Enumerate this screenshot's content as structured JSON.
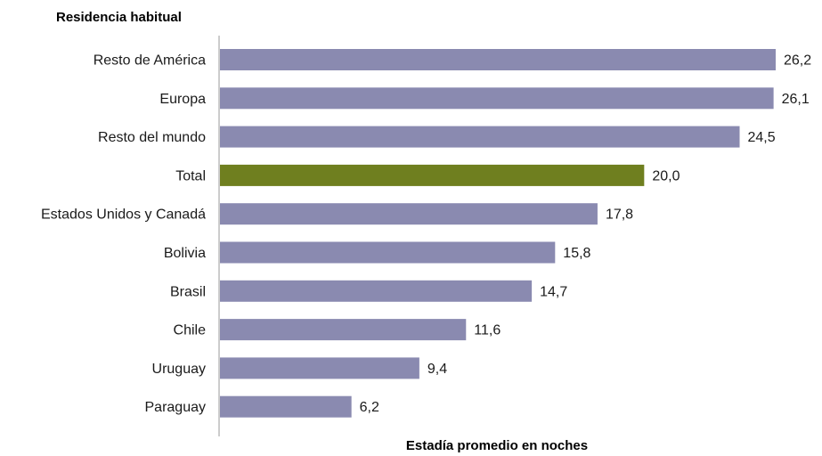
{
  "chart_data": {
    "type": "bar",
    "orientation": "horizontal",
    "ytitle": "Residencia habitual",
    "xlabel": "Estadía promedio en noches",
    "categories": [
      "Resto de América",
      "Europa",
      "Resto del mundo",
      "Total",
      "Estados Unidos y Canadá",
      "Bolivia",
      "Brasil",
      "Chile",
      "Uruguay",
      "Paraguay"
    ],
    "values": [
      26.2,
      26.1,
      24.5,
      20.0,
      17.8,
      15.8,
      14.7,
      11.6,
      9.4,
      6.2
    ],
    "value_labels": [
      "26,2",
      "26,1",
      "24,5",
      "20,0",
      "17,8",
      "15,8",
      "14,7",
      "11,6",
      "9,4",
      "6,2"
    ],
    "xlim": [
      0,
      26.2
    ],
    "grid": false,
    "legend": "none",
    "colors": {
      "bar": "#8a8ab0",
      "highlight": "#6f7f1f",
      "axis": "#999999"
    },
    "highlight_category": "Total"
  }
}
